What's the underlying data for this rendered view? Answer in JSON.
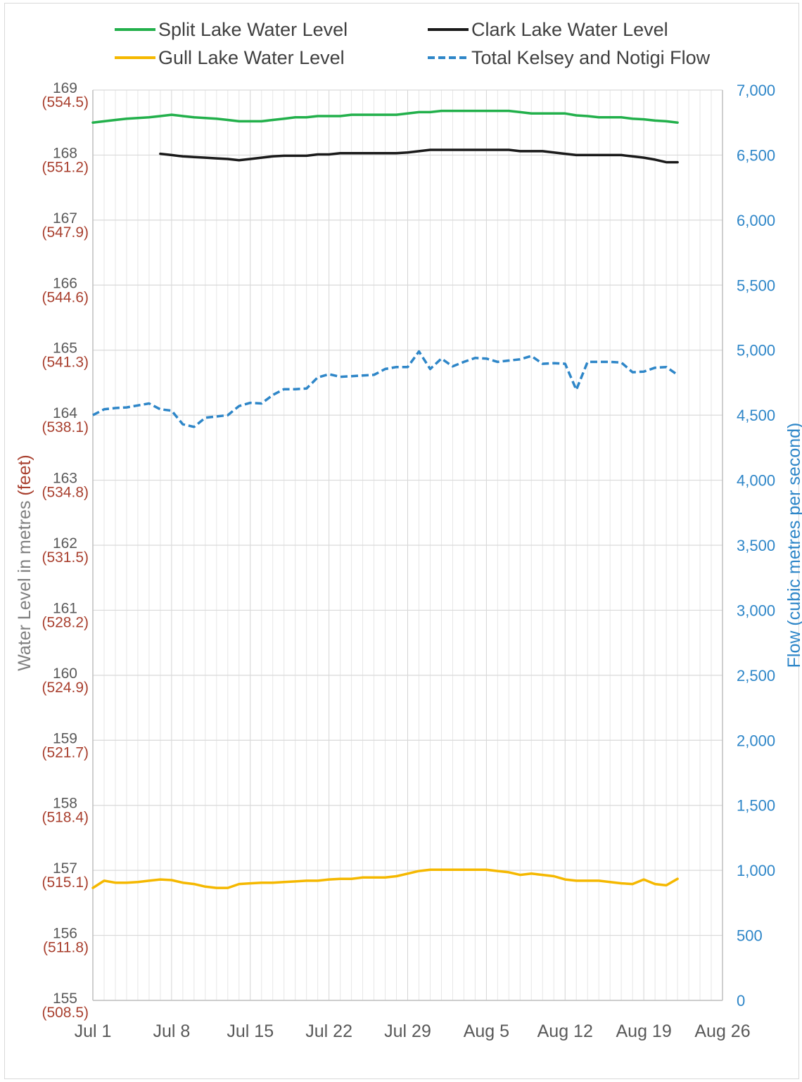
{
  "chart_data": {
    "type": "line",
    "start_date": "Jul 1",
    "x_tick_labels": [
      "Jul 1",
      "Jul 8",
      "Jul 15",
      "Jul 22",
      "Jul 29",
      "Aug 5",
      "Aug 12",
      "Aug 19",
      "Aug 26"
    ],
    "left_axis": {
      "title_main": "Water Level in metres ",
      "title_unit": "(feet)",
      "range": [
        155,
        169
      ],
      "ticks": [
        {
          "m": "155",
          "ft": "(508.5)"
        },
        {
          "m": "156",
          "ft": "(511.8)"
        },
        {
          "m": "157",
          "ft": "(515.1)"
        },
        {
          "m": "158",
          "ft": "(518.4)"
        },
        {
          "m": "159",
          "ft": "(521.7)"
        },
        {
          "m": "160",
          "ft": "(524.9)"
        },
        {
          "m": "161",
          "ft": "(528.2)"
        },
        {
          "m": "162",
          "ft": "(531.5)"
        },
        {
          "m": "163",
          "ft": "(534.8)"
        },
        {
          "m": "164",
          "ft": "(538.1)"
        },
        {
          "m": "165",
          "ft": "(541.3)"
        },
        {
          "m": "166",
          "ft": "(544.6)"
        },
        {
          "m": "167",
          "ft": "(547.9)"
        },
        {
          "m": "168",
          "ft": "(551.2)"
        },
        {
          "m": "169",
          "ft": "(554.5)"
        }
      ]
    },
    "right_axis": {
      "title": "Flow (cubic metres per second)",
      "range": [
        0,
        7000
      ],
      "ticks": [
        "0",
        "500",
        "1,000",
        "1,500",
        "2,000",
        "2,500",
        "3,000",
        "3,500",
        "4,000",
        "4,500",
        "5,000",
        "5,500",
        "6,000",
        "6,500",
        "7,000"
      ]
    },
    "legend": [
      {
        "name": "Split Lake Water Level",
        "color": "#22b04b",
        "style": "solid"
      },
      {
        "name": "Clark Lake Water Level",
        "color": "#1a1a1a",
        "style": "solid"
      },
      {
        "name": "Gull Lake Water Level",
        "color": "#f5b800",
        "style": "solid"
      },
      {
        "name": "Total Kelsey and Notigi Flow",
        "color": "#2e86c8",
        "style": "dashed"
      }
    ],
    "series": [
      {
        "name": "Split Lake Water Level",
        "axis": "left",
        "color": "#22b04b",
        "dash": false,
        "x": [
          0,
          1,
          2,
          3,
          4,
          5,
          6,
          7,
          8,
          9,
          10,
          11,
          12,
          13,
          14,
          15,
          16,
          17,
          18,
          19,
          20,
          21,
          22,
          23,
          24,
          25,
          26,
          27,
          28,
          29,
          30,
          31,
          32,
          33,
          34,
          35,
          36,
          37,
          38,
          39,
          40,
          41,
          42,
          43,
          44,
          45,
          46,
          47,
          48,
          49,
          50,
          51,
          52
        ],
        "values": [
          168.5,
          168.52,
          168.54,
          168.56,
          168.57,
          168.58,
          168.6,
          168.62,
          168.6,
          168.58,
          168.57,
          168.56,
          168.54,
          168.52,
          168.52,
          168.52,
          168.54,
          168.56,
          168.58,
          168.58,
          168.6,
          168.6,
          168.6,
          168.62,
          168.62,
          168.62,
          168.62,
          168.62,
          168.64,
          168.66,
          168.66,
          168.68,
          168.68,
          168.68,
          168.68,
          168.68,
          168.68,
          168.68,
          168.66,
          168.64,
          168.64,
          168.64,
          168.64,
          168.61,
          168.6,
          168.58,
          168.58,
          168.58,
          168.56,
          168.55,
          168.53,
          168.52,
          168.5
        ]
      },
      {
        "name": "Clark Lake Water Level",
        "axis": "left",
        "color": "#1a1a1a",
        "dash": false,
        "x": [
          6,
          7,
          8,
          9,
          10,
          11,
          12,
          13,
          14,
          15,
          16,
          17,
          18,
          19,
          20,
          21,
          22,
          23,
          24,
          25,
          26,
          27,
          28,
          29,
          30,
          31,
          32,
          33,
          34,
          35,
          36,
          37,
          38,
          39,
          40,
          41,
          42,
          43,
          44,
          45,
          46,
          47,
          48,
          49,
          50,
          51,
          52
        ],
        "values": [
          168.02,
          168.0,
          167.98,
          167.97,
          167.96,
          167.95,
          167.94,
          167.92,
          167.94,
          167.96,
          167.98,
          167.99,
          167.99,
          167.99,
          168.01,
          168.01,
          168.03,
          168.03,
          168.03,
          168.03,
          168.03,
          168.03,
          168.04,
          168.06,
          168.08,
          168.08,
          168.08,
          168.08,
          168.08,
          168.08,
          168.08,
          168.08,
          168.06,
          168.06,
          168.06,
          168.04,
          168.02,
          168.0,
          168.0,
          168.0,
          168.0,
          168.0,
          167.98,
          167.96,
          167.93,
          167.89,
          167.89
        ]
      },
      {
        "name": "Gull Lake Water Level",
        "axis": "left",
        "color": "#f5b800",
        "dash": false,
        "x": [
          0,
          1,
          2,
          3,
          4,
          5,
          6,
          7,
          8,
          9,
          10,
          11,
          12,
          13,
          14,
          15,
          16,
          17,
          18,
          19,
          20,
          21,
          22,
          23,
          24,
          25,
          26,
          27,
          28,
          29,
          30,
          31,
          32,
          33,
          34,
          35,
          36,
          37,
          38,
          39,
          40,
          41,
          42,
          43,
          44,
          45,
          46,
          47,
          48,
          49,
          50,
          51,
          52
        ],
        "values": [
          156.73,
          156.84,
          156.81,
          156.81,
          156.82,
          156.84,
          156.86,
          156.85,
          156.81,
          156.79,
          156.75,
          156.73,
          156.73,
          156.79,
          156.8,
          156.81,
          156.81,
          156.82,
          156.83,
          156.84,
          156.84,
          156.86,
          156.87,
          156.87,
          156.89,
          156.89,
          156.89,
          156.91,
          156.95,
          156.99,
          157.01,
          157.01,
          157.01,
          157.01,
          157.01,
          157.01,
          156.99,
          156.97,
          156.93,
          156.95,
          156.93,
          156.91,
          156.86,
          156.84,
          156.84,
          156.84,
          156.82,
          156.8,
          156.79,
          156.86,
          156.79,
          156.77,
          156.87
        ]
      },
      {
        "name": "Total Kelsey and Notigi Flow",
        "axis": "right",
        "color": "#2e86c8",
        "dash": true,
        "x": [
          0,
          1,
          2,
          3,
          4,
          5,
          6,
          7,
          8,
          9,
          10,
          11,
          12,
          13,
          14,
          15,
          16,
          17,
          18,
          19,
          20,
          21,
          22,
          23,
          24,
          25,
          26,
          27,
          28,
          29,
          30,
          31,
          32,
          33,
          34,
          35,
          36,
          37,
          38,
          39,
          40,
          41,
          42,
          43,
          44,
          45,
          46,
          47,
          48,
          49,
          50,
          51,
          52
        ],
        "values": [
          4500,
          4545,
          4555,
          4560,
          4575,
          4590,
          4545,
          4535,
          4430,
          4410,
          4480,
          4490,
          4500,
          4570,
          4595,
          4590,
          4655,
          4700,
          4700,
          4705,
          4790,
          4815,
          4795,
          4800,
          4805,
          4810,
          4855,
          4870,
          4870,
          4990,
          4855,
          4935,
          4875,
          4910,
          4940,
          4935,
          4910,
          4920,
          4930,
          4955,
          4895,
          4900,
          4895,
          4695,
          4910,
          4910,
          4910,
          4905,
          4830,
          4835,
          4865,
          4870,
          4810
        ]
      }
    ],
    "grid": true,
    "legend_position": "top"
  }
}
